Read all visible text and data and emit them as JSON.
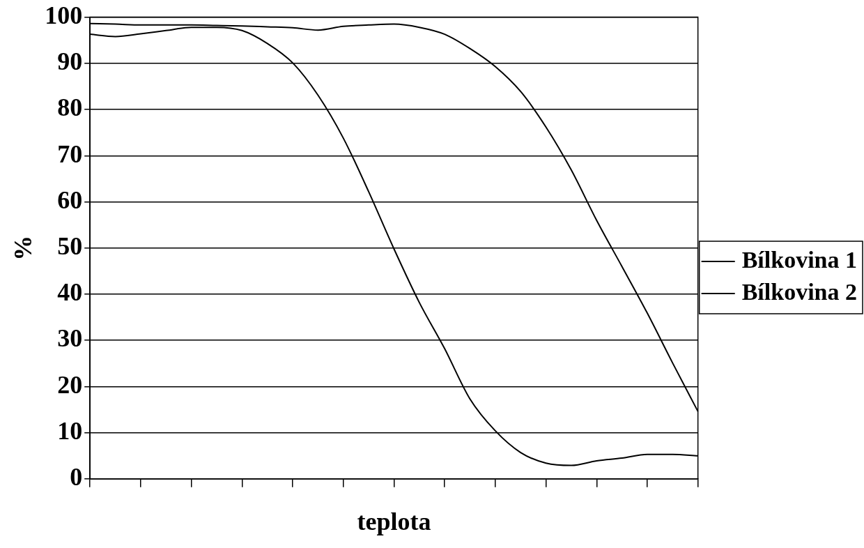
{
  "chart_data": {
    "type": "line",
    "xlabel": "teplota",
    "ylabel": "%",
    "categories": [
      null,
      null,
      null,
      null,
      null,
      null,
      null,
      null,
      null,
      null,
      null,
      null,
      null,
      null,
      null,
      null,
      null,
      null,
      null,
      null,
      null,
      null,
      null,
      null,
      null
    ],
    "series": [
      {
        "name": "Bílkovina 1",
        "color": "#000000",
        "values": [
          96.3,
          95.8,
          96.4,
          97.1,
          97.8,
          97.8,
          97.1,
          94.3,
          90.1,
          83.1,
          73.8,
          62.2,
          49.8,
          38.2,
          28.2,
          17.3,
          10.4,
          5.7,
          3.4,
          2.9,
          3.9,
          4.5,
          5.3,
          5.3,
          5.0
        ]
      },
      {
        "name": "Bílkovina 2",
        "color": "#000000",
        "values": [
          98.6,
          98.5,
          98.3,
          98.3,
          98.3,
          98.2,
          98.1,
          97.9,
          97.7,
          97.2,
          98.0,
          98.3,
          98.5,
          97.8,
          96.3,
          93.2,
          89.3,
          83.9,
          76.2,
          66.9,
          56.0,
          46.0,
          35.9,
          25.1,
          14.6
        ]
      }
    ],
    "ylim": [
      0,
      100
    ],
    "yticks": [
      0,
      10,
      20,
      30,
      40,
      50,
      60,
      70,
      80,
      90,
      100
    ],
    "grid": "y",
    "legend": "right",
    "tick_labels": "y",
    "line_style": "solid"
  }
}
